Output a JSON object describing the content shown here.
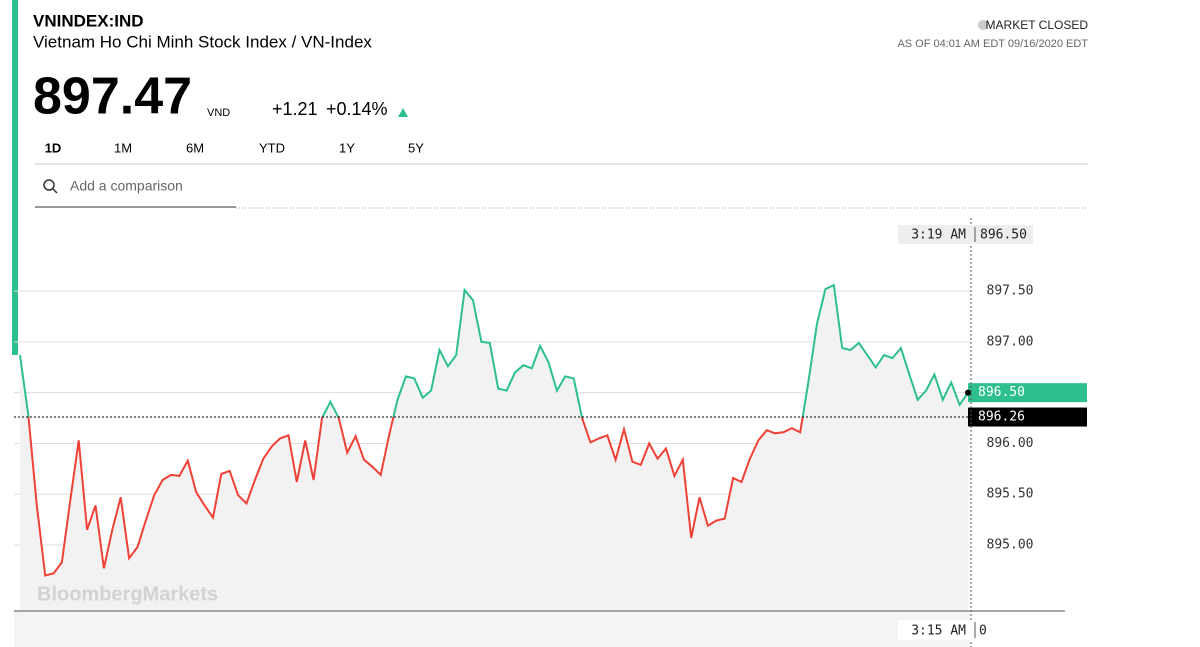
{
  "header": {
    "symbol": "VNINDEX:IND",
    "name": "Vietnam Ho Chi Minh Stock Index / VN-Index",
    "price": "897.47",
    "currency": "VND",
    "change": "+1.21",
    "change_pct": "+0.14%",
    "status": "MARKET CLOSED",
    "as_of": "AS OF 04:01 AM EDT 09/16/2020 EDT"
  },
  "tabs": [
    "1D",
    "1M",
    "6M",
    "YTD",
    "1Y",
    "5Y"
  ],
  "active_tab": 0,
  "search_placeholder": "Add a comparison",
  "chart_data": {
    "type": "line",
    "watermark": "BloombergMarkets",
    "values": [
      896.87,
      896.27,
      895.39,
      894.7,
      894.72,
      894.83,
      895.44,
      896.03,
      895.15,
      895.39,
      894.77,
      895.15,
      895.47,
      894.87,
      894.98,
      895.24,
      895.49,
      895.64,
      895.69,
      895.68,
      895.83,
      895.52,
      895.39,
      895.27,
      895.7,
      895.73,
      895.49,
      895.41,
      895.64,
      895.85,
      895.97,
      896.05,
      896.08,
      895.62,
      896.03,
      895.64,
      896.25,
      896.41,
      896.25,
      895.91,
      896.07,
      895.84,
      895.77,
      895.69,
      896.08,
      896.43,
      896.66,
      896.64,
      896.45,
      896.52,
      896.92,
      896.76,
      896.87,
      897.51,
      897.41,
      897.0,
      896.99,
      896.54,
      896.52,
      896.7,
      896.77,
      896.74,
      896.96,
      896.8,
      896.52,
      896.66,
      896.64,
      896.25,
      896.01,
      896.05,
      896.08,
      895.84,
      896.14,
      895.82,
      895.79,
      896.0,
      895.85,
      895.95,
      895.68,
      895.84,
      895.07,
      895.47,
      895.19,
      895.24,
      895.26,
      895.66,
      895.62,
      895.85,
      896.03,
      896.13,
      896.1,
      896.11,
      896.15,
      896.11,
      896.62,
      897.18,
      897.52,
      897.56,
      896.94,
      896.92,
      896.99,
      896.87,
      896.75,
      896.87,
      896.84,
      896.94,
      896.68,
      896.43,
      896.52,
      896.68,
      896.43,
      896.6,
      896.38,
      896.5
    ],
    "up_color": "#2dbf8c",
    "down_color": "#ef4136",
    "reference": {
      "value": 896.26,
      "label": "896.26"
    },
    "last": {
      "value": 896.5,
      "label": "896.50"
    },
    "crosshair": {
      "time": "3:19 AM",
      "value": "896.50"
    },
    "start_time": "3:15 AM",
    "volume_label": "0",
    "ylim": [
      894.35,
      898.22
    ],
    "yticks": [
      {
        "value": 895,
        "label": "895.00"
      },
      {
        "value": 895.5,
        "label": "895.50"
      },
      {
        "value": 896,
        "label": "896.00"
      },
      {
        "value": 896.5,
        "label": "896.50"
      },
      {
        "value": 897,
        "label": "897.00"
      },
      {
        "value": 897.5,
        "label": "897.50"
      }
    ],
    "grid": true
  }
}
